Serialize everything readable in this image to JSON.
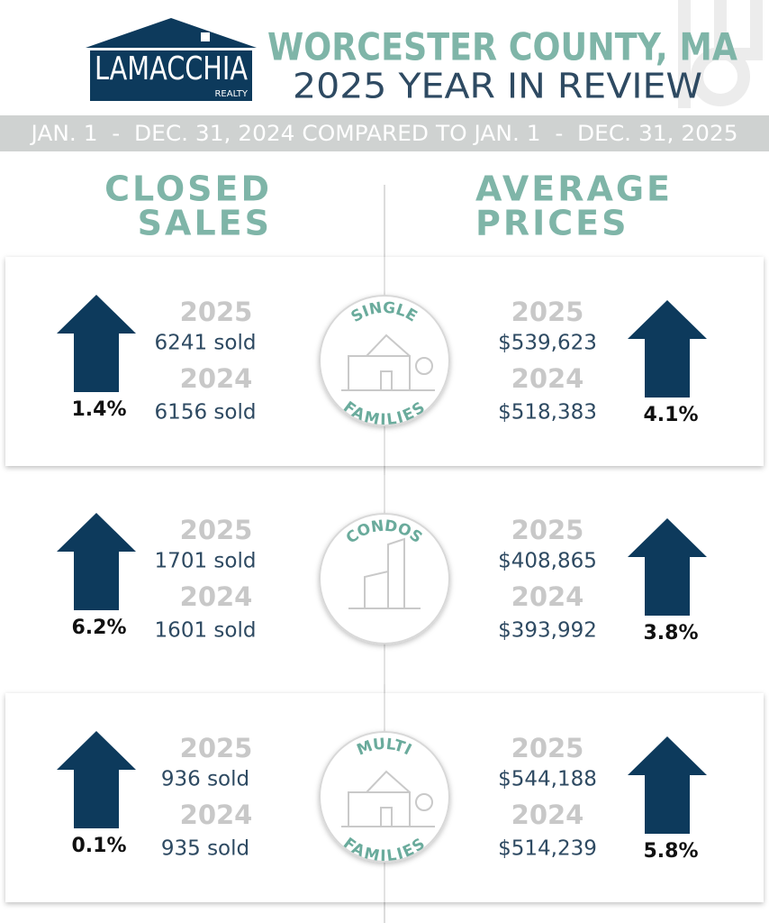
{
  "header": {
    "logo_name": "LAMACCHIA",
    "logo_sub": "REALTY",
    "title": "WORCESTER COUNTY, MA",
    "subtitle": "2025 YEAR IN REVIEW",
    "date_range": "JAN. 1  -  DEC. 31, 2024 COMPARED TO JAN. 1  -  DEC. 31, 2025"
  },
  "columns": {
    "left": [
      "CLOSED",
      "SALES"
    ],
    "right": [
      "AVERAGE",
      "PRICES"
    ]
  },
  "sections": [
    {
      "badge_top": "SINGLE",
      "badge_bottom": "FAMILIES",
      "sales": {
        "year1": "2025",
        "value1": "6241 sold",
        "year2": "2024",
        "value2": "6156 sold",
        "change": "1.4%"
      },
      "prices": {
        "year1": "2025",
        "value1": "$539,623",
        "year2": "2024",
        "value2": "$518,383",
        "change": "4.1%"
      }
    },
    {
      "badge_top": "CONDOS",
      "sales": {
        "year1": "2025",
        "value1": "1701 sold",
        "year2": "2024",
        "value2": "1601 sold",
        "change": "6.2%"
      },
      "prices": {
        "year1": "2025",
        "value1": "$408,865",
        "year2": "2024",
        "value2": "$393,992",
        "change": "3.8%"
      }
    },
    {
      "badge_top": "MULTI",
      "badge_bottom": "FAMILIES",
      "sales": {
        "year1": "2025",
        "value1": "936 sold",
        "year2": "2024",
        "value2": "935 sold",
        "change": "0.1%"
      },
      "prices": {
        "year1": "2025",
        "value1": "$544,188",
        "year2": "2024",
        "value2": "$514,239",
        "change": "5.8%"
      }
    }
  ]
}
